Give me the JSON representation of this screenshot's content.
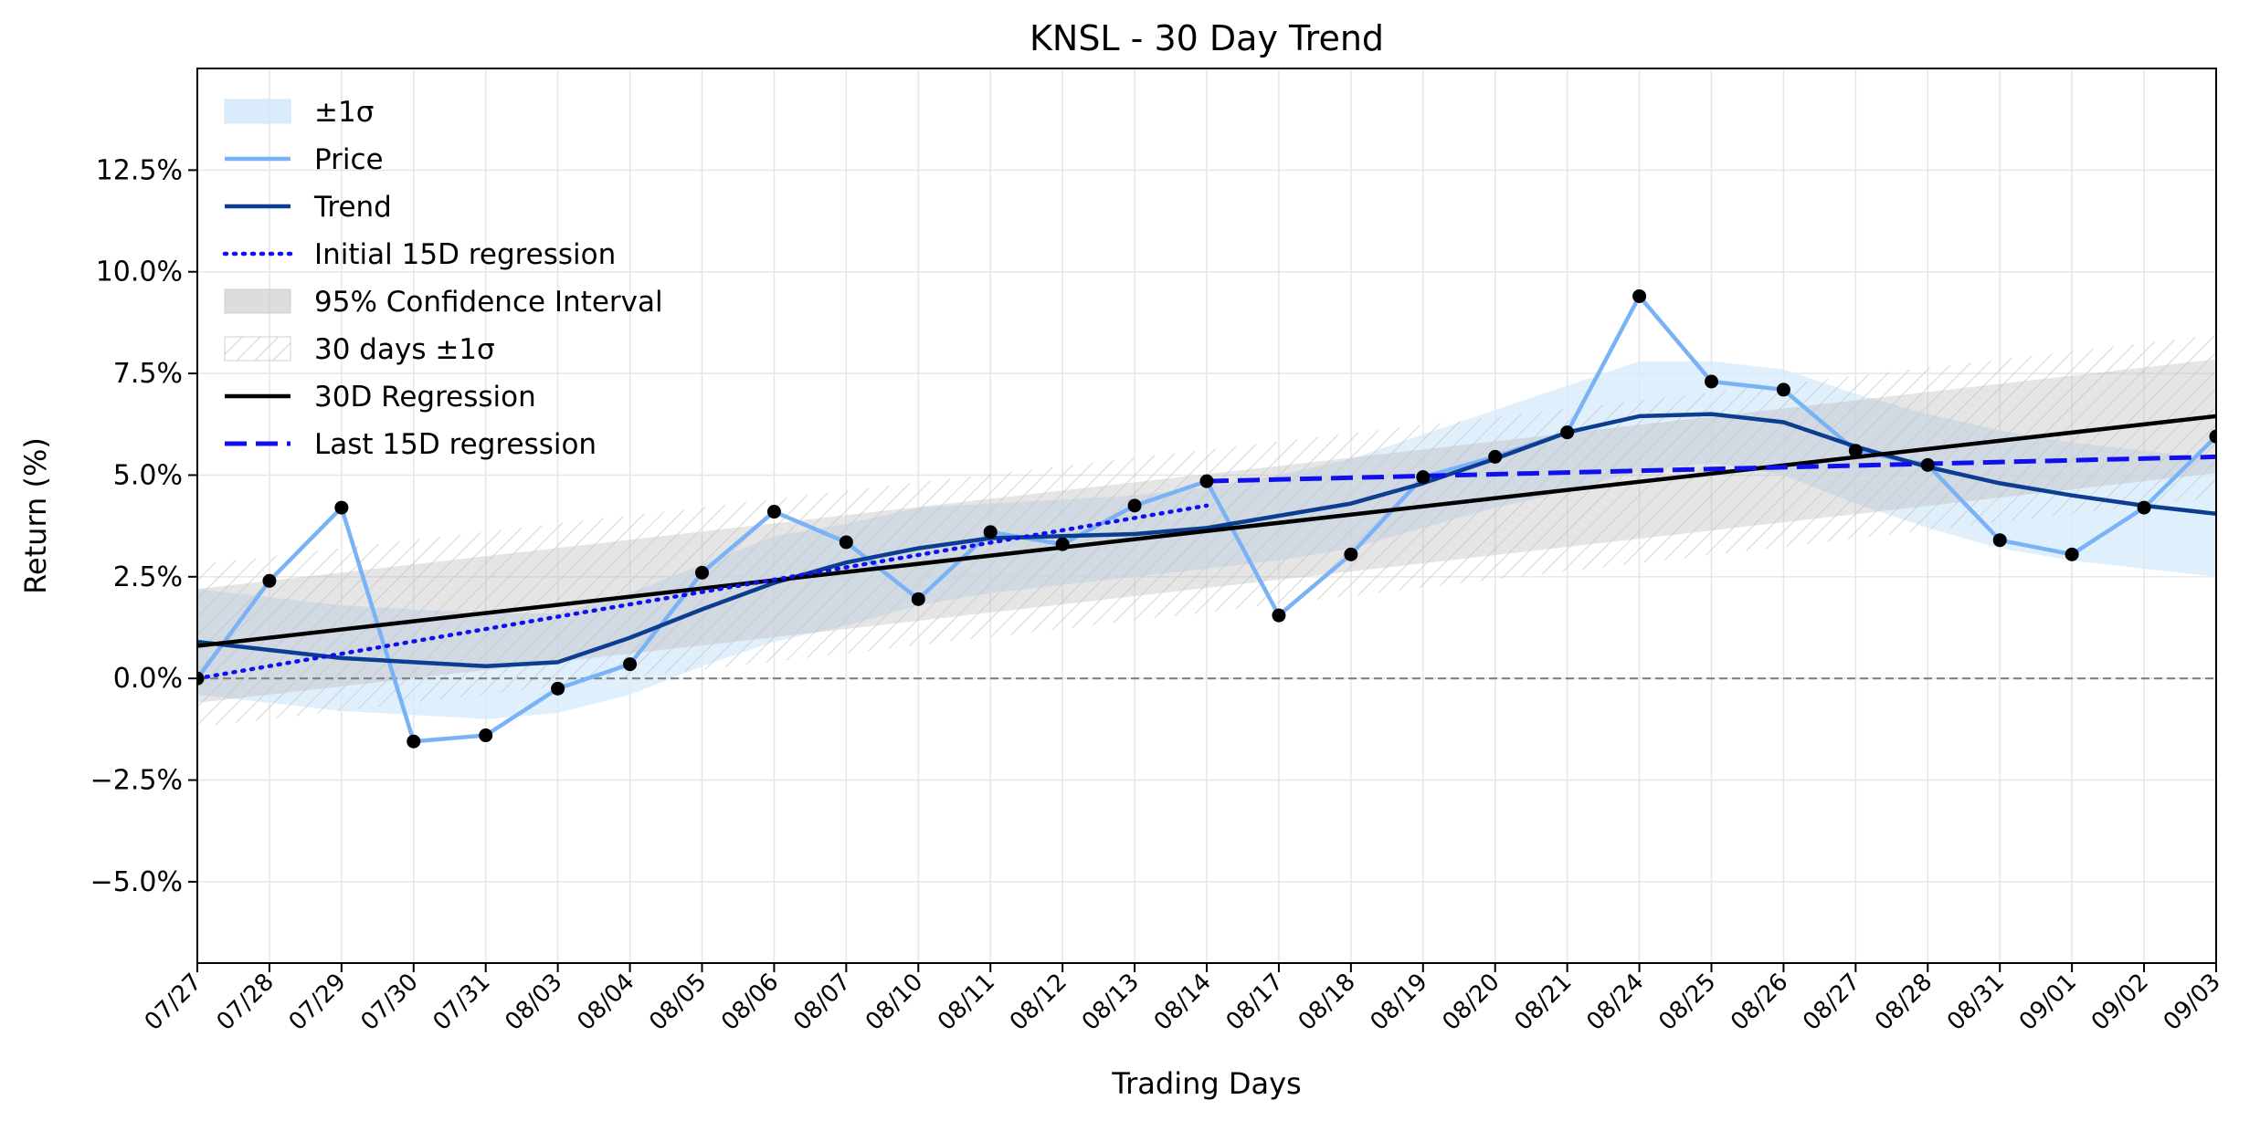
{
  "chart_data": {
    "type": "line",
    "title": "KNSL - 30 Day Trend",
    "xlabel": "Trading Days",
    "ylabel": "Return (%)",
    "ylim": [
      -7.0,
      15.0
    ],
    "yticks": [
      -5.0,
      -2.5,
      0.0,
      2.5,
      5.0,
      7.5,
      10.0,
      12.5
    ],
    "ytick_labels": [
      "−5.0%",
      "−2.5%",
      "0.0%",
      "2.5%",
      "5.0%",
      "7.5%",
      "10.0%",
      "12.5%"
    ],
    "grid": true,
    "legend_position": "top-left",
    "categories": [
      "07/27",
      "07/28",
      "07/29",
      "07/30",
      "07/31",
      "08/03",
      "08/04",
      "08/05",
      "08/06",
      "08/07",
      "08/10",
      "08/11",
      "08/12",
      "08/13",
      "08/14",
      "08/17",
      "08/18",
      "08/19",
      "08/20",
      "08/21",
      "08/24",
      "08/25",
      "08/26",
      "08/27",
      "08/28",
      "08/31",
      "09/01",
      "09/02",
      "09/03"
    ],
    "legend": [
      {
        "label": "±1σ",
        "kind": "band",
        "color": "#d6e9fb"
      },
      {
        "label": "Price",
        "kind": "line",
        "color": "#7ab3f5"
      },
      {
        "label": "Trend",
        "kind": "line",
        "color": "#0b3d91"
      },
      {
        "label": "Initial 15D regression",
        "kind": "dotted",
        "color": "#1010ee"
      },
      {
        "label": "95% Confidence Interval",
        "kind": "band",
        "color": "#c8c8c8"
      },
      {
        "label": "30 days ±1σ",
        "kind": "hatch",
        "color": "#d0d0d0"
      },
      {
        "label": "30D Regression",
        "kind": "line",
        "color": "#000000"
      },
      {
        "label": "Last 15D regression",
        "kind": "dashed",
        "color": "#1010ee"
      }
    ],
    "series": [
      {
        "name": "Price",
        "color": "#7ab3f5",
        "values": [
          0.0,
          2.4,
          4.2,
          -1.55,
          -1.4,
          -0.25,
          0.35,
          2.6,
          4.1,
          3.35,
          1.95,
          3.6,
          3.3,
          4.25,
          4.85,
          1.55,
          3.05,
          4.95,
          5.45,
          6.05,
          9.4,
          7.3,
          7.1,
          5.6,
          5.25,
          3.4,
          3.05,
          4.2,
          5.95
        ]
      },
      {
        "name": "Trend",
        "color": "#0b3d91",
        "values": [
          0.9,
          0.7,
          0.5,
          0.4,
          0.3,
          0.4,
          1.0,
          1.7,
          2.35,
          2.85,
          3.2,
          3.45,
          3.5,
          3.55,
          3.7,
          4.0,
          4.3,
          4.8,
          5.4,
          6.05,
          6.45,
          6.5,
          6.3,
          5.7,
          5.2,
          4.8,
          4.5,
          4.25,
          4.05
        ]
      },
      {
        "name": "30D Regression",
        "color": "#000000",
        "start": 0.8,
        "end": 6.45
      },
      {
        "name": "Initial 15D regression",
        "color": "#1010ee",
        "start": 0.0,
        "end": 4.25,
        "from_index": 0,
        "to_index": 14
      },
      {
        "name": "Last 15D regression",
        "color": "#1010ee",
        "start": 4.85,
        "end": 5.45,
        "from_index": 14,
        "to_index": 28
      },
      {
        "name": "±1σ",
        "kind": "band",
        "lower": [
          -0.4,
          -0.6,
          -0.8,
          -0.9,
          -1.0,
          -0.85,
          -0.4,
          0.3,
          0.9,
          1.3,
          1.8,
          2.1,
          2.3,
          2.5,
          2.7,
          2.9,
          3.2,
          3.7,
          4.2,
          4.6,
          5.1,
          5.3,
          5.0,
          4.3,
          3.7,
          3.2,
          2.9,
          2.7,
          2.5
        ],
        "upper": [
          2.2,
          2.0,
          1.8,
          1.7,
          1.6,
          1.6,
          2.1,
          2.8,
          3.5,
          3.8,
          4.2,
          4.3,
          4.4,
          4.5,
          4.7,
          5.0,
          5.4,
          6.0,
          6.6,
          7.2,
          7.8,
          7.8,
          7.6,
          7.0,
          6.5,
          6.1,
          5.8,
          5.6,
          5.4
        ]
      },
      {
        "name": "95% Confidence Interval",
        "kind": "band",
        "lower_start": -0.6,
        "lower_end": 5.05,
        "upper_start": 2.2,
        "upper_end": 7.85
      },
      {
        "name": "30 days ±1σ",
        "kind": "band",
        "lower_start": -1.2,
        "lower_end": 4.45,
        "upper_start": 2.8,
        "upper_end": 8.45
      }
    ],
    "reference_line": {
      "y": 0.0,
      "style": "dashed",
      "color": "#808080"
    }
  }
}
